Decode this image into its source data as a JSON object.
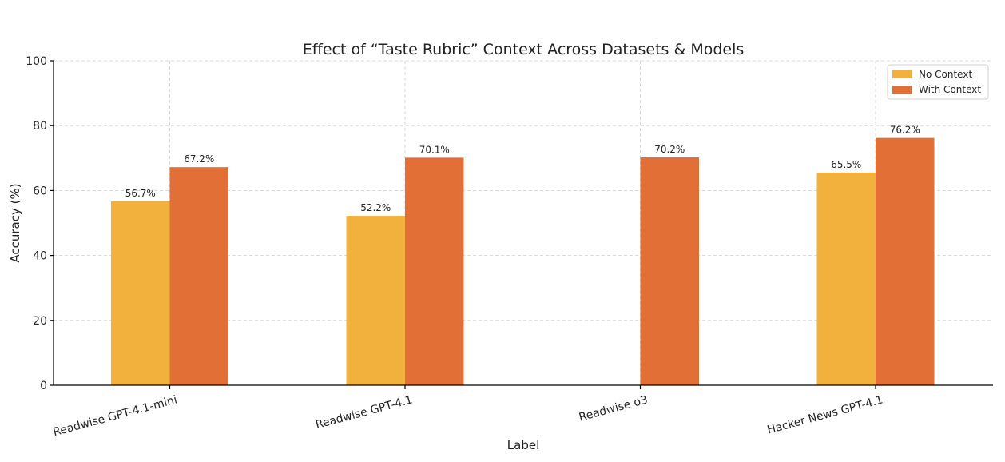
{
  "chart_data": {
    "type": "bar",
    "title": "Effect of “Taste Rubric” Context Across Datasets & Models",
    "xlabel": "Label",
    "ylabel": "Accuracy (%)",
    "ylim": [
      0,
      100
    ],
    "yticks": [
      0,
      20,
      40,
      60,
      80,
      100
    ],
    "grid": true,
    "legend_position": "top-right",
    "categories": [
      "Readwise GPT-4.1-mini",
      "Readwise GPT-4.1",
      "Readwise o3",
      "Hacker News GPT-4.1"
    ],
    "series": [
      {
        "name": "No Context",
        "color": "#F2B13D",
        "values": [
          56.7,
          52.2,
          null,
          65.5
        ],
        "labels": [
          "56.7%",
          "52.2%",
          null,
          "65.5%"
        ]
      },
      {
        "name": "With Context",
        "color": "#E27036",
        "values": [
          67.2,
          70.1,
          70.2,
          76.2
        ],
        "labels": [
          "67.2%",
          "70.1%",
          "70.2%",
          "76.2%"
        ]
      }
    ]
  }
}
